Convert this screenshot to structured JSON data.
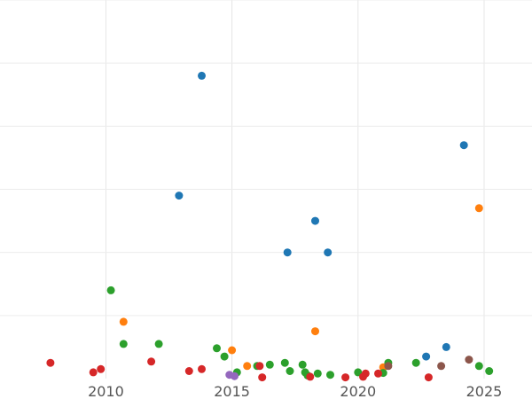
{
  "chart_data": {
    "type": "scatter",
    "title": "",
    "xlabel": "",
    "ylabel": "",
    "xlim": [
      2005.8,
      2026.9
    ],
    "ylim": [
      0,
      6
    ],
    "x_ticks": [
      {
        "value": 2010,
        "label": "2010"
      },
      {
        "value": 2015,
        "label": "2015"
      },
      {
        "value": 2020,
        "label": "2020"
      },
      {
        "value": 2025,
        "label": "2025"
      }
    ],
    "y_gridlines": [
      1,
      2,
      3,
      4,
      5,
      6
    ],
    "grid": true,
    "legend": "none",
    "series": [
      {
        "color": "#1f77b4",
        "points": [
          [
            2013.8,
            4.8
          ],
          [
            2012.9,
            2.9
          ],
          [
            2017.2,
            2.0
          ],
          [
            2018.3,
            2.5
          ],
          [
            2018.8,
            2.0
          ],
          [
            2022.7,
            0.35
          ],
          [
            2023.5,
            0.5
          ],
          [
            2024.2,
            3.7
          ]
        ]
      },
      {
        "color": "#ff7f0e",
        "points": [
          [
            2010.7,
            0.9
          ],
          [
            2015.0,
            0.45
          ],
          [
            2015.6,
            0.2
          ],
          [
            2018.3,
            0.75
          ],
          [
            2021.0,
            0.18
          ],
          [
            2024.8,
            2.7
          ]
        ]
      },
      {
        "color": "#2ca02c",
        "points": [
          [
            2010.2,
            1.4
          ],
          [
            2010.7,
            0.55
          ],
          [
            2012.1,
            0.55
          ],
          [
            2014.4,
            0.48
          ],
          [
            2014.7,
            0.35
          ],
          [
            2015.2,
            0.1
          ],
          [
            2016.0,
            0.2
          ],
          [
            2016.5,
            0.22
          ],
          [
            2017.1,
            0.25
          ],
          [
            2017.3,
            0.12
          ],
          [
            2017.8,
            0.22
          ],
          [
            2017.9,
            0.1
          ],
          [
            2018.0,
            0.05
          ],
          [
            2018.4,
            0.08
          ],
          [
            2018.9,
            0.06
          ],
          [
            2020.0,
            0.1
          ],
          [
            2021.0,
            0.09
          ],
          [
            2021.2,
            0.25
          ],
          [
            2022.3,
            0.25
          ],
          [
            2024.8,
            0.2
          ],
          [
            2025.2,
            0.12
          ]
        ]
      },
      {
        "color": "#d62728",
        "points": [
          [
            2007.8,
            0.25
          ],
          [
            2009.5,
            0.1
          ],
          [
            2009.8,
            0.15
          ],
          [
            2011.8,
            0.27
          ],
          [
            2013.3,
            0.12
          ],
          [
            2013.8,
            0.15
          ],
          [
            2016.1,
            0.2
          ],
          [
            2016.2,
            0.02
          ],
          [
            2018.1,
            0.03
          ],
          [
            2019.5,
            0.02
          ],
          [
            2020.2,
            0.03
          ],
          [
            2020.3,
            0.08
          ],
          [
            2020.8,
            0.08
          ],
          [
            2022.8,
            0.02
          ]
        ]
      },
      {
        "color": "#9467bd",
        "points": [
          [
            2014.9,
            0.06
          ],
          [
            2015.1,
            0.04
          ]
        ]
      },
      {
        "color": "#8c564b",
        "points": [
          [
            2021.2,
            0.2
          ],
          [
            2023.3,
            0.2
          ],
          [
            2024.4,
            0.3
          ]
        ]
      }
    ]
  }
}
